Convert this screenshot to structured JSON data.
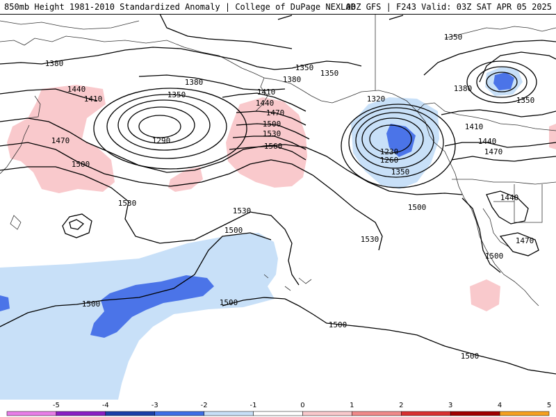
{
  "header": {
    "title_left": "850mb Height 1981-2010 Standardized Anomaly | College of DuPage NEXLAB",
    "title_right": "00Z GFS | F243 Valid: 03Z SAT APR 05 2025"
  },
  "colors": {
    "anom_pos1": "#f9c9cc",
    "anom_neg1": "#c8e0f8",
    "anom_neg2": "#4b74e8",
    "contour": "#000000",
    "coast": "#333333"
  },
  "colorbar": {
    "ticks": [
      "-5",
      "-4",
      "-3",
      "-2",
      "-1",
      "0",
      "1",
      "2",
      "3",
      "4",
      "5"
    ],
    "colors": [
      "#e87ee8",
      "#8a1fc4",
      "#1b3fa8",
      "#3e6ee6",
      "#c8e0f8",
      "#ffffff",
      "#f9c9cc",
      "#f08a8a",
      "#d83030",
      "#a00000",
      "#f5a020"
    ]
  },
  "map": {
    "contour_labels": [
      {
        "id": "l1380a",
        "text": "1380"
      },
      {
        "id": "l1440a",
        "text": "1440"
      },
      {
        "id": "l1410a",
        "text": "1410"
      },
      {
        "id": "l1350a",
        "text": "1350"
      },
      {
        "id": "l1290",
        "text": "1290"
      },
      {
        "id": "l1470a",
        "text": "1470"
      },
      {
        "id": "l1500a",
        "text": "1500"
      },
      {
        "id": "l1530a",
        "text": "1530"
      },
      {
        "id": "l1380b",
        "text": "1380"
      },
      {
        "id": "l1410b",
        "text": "1410"
      },
      {
        "id": "l1440b",
        "text": "1440"
      },
      {
        "id": "l1470b",
        "text": "1470"
      },
      {
        "id": "l1500b",
        "text": "1500"
      },
      {
        "id": "l1530b",
        "text": "1530"
      },
      {
        "id": "l1560",
        "text": "1560"
      },
      {
        "id": "l1350b",
        "text": "1350"
      },
      {
        "id": "l1380c",
        "text": "1380"
      },
      {
        "id": "l1350c",
        "text": "1350"
      },
      {
        "id": "l1320",
        "text": "1320"
      },
      {
        "id": "l1230",
        "text": "1230"
      },
      {
        "id": "l1260",
        "text": "1260"
      },
      {
        "id": "l1350d",
        "text": "1350"
      },
      {
        "id": "l1350e",
        "text": "1350"
      },
      {
        "id": "l1380d",
        "text": "1380"
      },
      {
        "id": "l1350f",
        "text": "1350"
      },
      {
        "id": "l1410c",
        "text": "1410"
      },
      {
        "id": "l1440c",
        "text": "1440"
      },
      {
        "id": "l1470c",
        "text": "1470"
      },
      {
        "id": "l1440d",
        "text": "1440"
      },
      {
        "id": "l1470d",
        "text": "1470"
      },
      {
        "id": "l1500c",
        "text": "1500"
      },
      {
        "id": "l1500d",
        "text": "1500"
      },
      {
        "id": "l1530c",
        "text": "1530"
      },
      {
        "id": "l1500e",
        "text": "1500"
      },
      {
        "id": "l1530d",
        "text": "1530"
      },
      {
        "id": "l1500f",
        "text": "1500"
      },
      {
        "id": "l1500g",
        "text": "1500"
      },
      {
        "id": "l1500h",
        "text": "1500"
      },
      {
        "id": "l1500i",
        "text": "1500"
      }
    ]
  }
}
